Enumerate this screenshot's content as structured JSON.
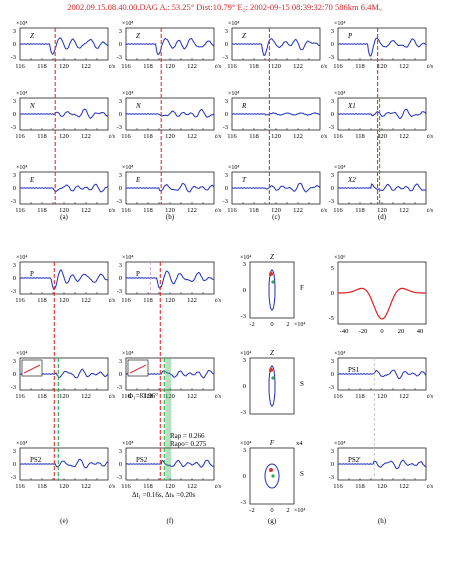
{
  "header": {
    "text": "2002.09.15.08.40.00.DAG Aᵢ: 53.25° Dist:10.79° E₂: 2002-09-15 08:39:32:70 586km 6.4Mᵤ"
  },
  "colors": {
    "trace": "#1f2fbf",
    "pick_red": "#e23030",
    "pick_green": "#2fa84a",
    "wavelet": "#e02020",
    "header": "#d8262b"
  },
  "common": {
    "exp_label": "×10⁴",
    "exp_label_f4": "×10⁴",
    "exp_label_f4_h": "×10⁶",
    "y_ticks": [
      "3",
      "0",
      "-3"
    ],
    "x_ticks": [
      "116",
      "118",
      "120",
      "122"
    ],
    "x_unit": "t/s"
  },
  "top_columns": [
    {
      "letter": "(a)",
      "panels": [
        "Z",
        "N",
        "E"
      ]
    },
    {
      "letter": "(b)",
      "panels": [
        "Z",
        "N",
        "E"
      ]
    },
    {
      "letter": "(c)",
      "panels": [
        "Z",
        "R",
        "T"
      ]
    },
    {
      "letter": "(d)",
      "panels": [
        "P",
        "X1",
        "X2"
      ]
    }
  ],
  "bottom_columns": [
    {
      "letter": "(e)",
      "panels": [
        "P",
        "PS1",
        "PS2"
      ]
    },
    {
      "letter": "(f)",
      "panels": [
        "P",
        "PS1",
        "PS2"
      ]
    },
    {
      "letter": "(g)"
    },
    {
      "letter": "(h)",
      "panels": [
        "",
        "PS1",
        "PS2'"
      ]
    }
  ],
  "annotations": {
    "phi": "Φ₁=83.96°",
    "rap": "Rap = 0.266",
    "rapo": "Rapo= 0.275",
    "dt": "Δt₁ =0.16s,  Δtₕ =0.20s"
  },
  "hodograms": {
    "g1": {
      "title": "Z",
      "side": "F",
      "x_ticks": [
        "-2",
        "0",
        "2"
      ],
      "x_exp": "×10⁴"
    },
    "g2": {
      "title": "Z",
      "side": "S"
    },
    "g3": {
      "title": "F",
      "side": "S",
      "x_ticks": [
        "-2",
        "0",
        "2"
      ],
      "x_exp": "×10⁴",
      "corner": "x4"
    }
  },
  "wavelet_axis": {
    "x_ticks": [
      "-40",
      "-20",
      "0",
      "20",
      "40"
    ],
    "y_ticks": [
      "5",
      "0",
      "-5"
    ]
  }
}
